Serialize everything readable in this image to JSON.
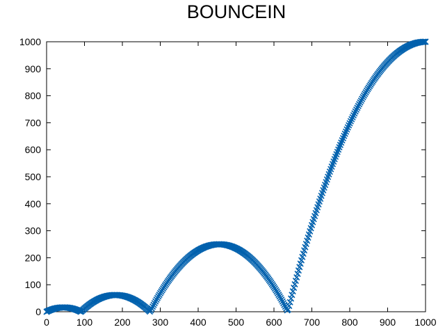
{
  "chart_data": {
    "type": "scatter",
    "title": "BOUNCEIN",
    "xlabel": "",
    "ylabel": "",
    "xlim": [
      0,
      1000
    ],
    "ylim": [
      0,
      1000
    ],
    "xticks": [
      "0",
      "100",
      "200",
      "300",
      "400",
      "500",
      "600",
      "700",
      "800",
      "900",
      "1000"
    ],
    "yticks": [
      "0",
      "100",
      "200",
      "300",
      "400",
      "500",
      "600",
      "700",
      "800",
      "900",
      "1000"
    ],
    "grid": false,
    "legend": "none",
    "marker": "x",
    "series_color": "#0060ad",
    "curve": "bounce-in easing",
    "bounces": [
      {
        "x_start": 0,
        "x_end": 91,
        "peak_x": 45,
        "peak_y": 16
      },
      {
        "x_start": 91,
        "x_end": 273,
        "peak_x": 182,
        "peak_y": 62
      },
      {
        "x_start": 273,
        "x_end": 636,
        "peak_x": 455,
        "peak_y": 250
      },
      {
        "x_start": 636,
        "x_end": 1000,
        "peak_x": 1000,
        "peak_y": 1000
      }
    ]
  }
}
